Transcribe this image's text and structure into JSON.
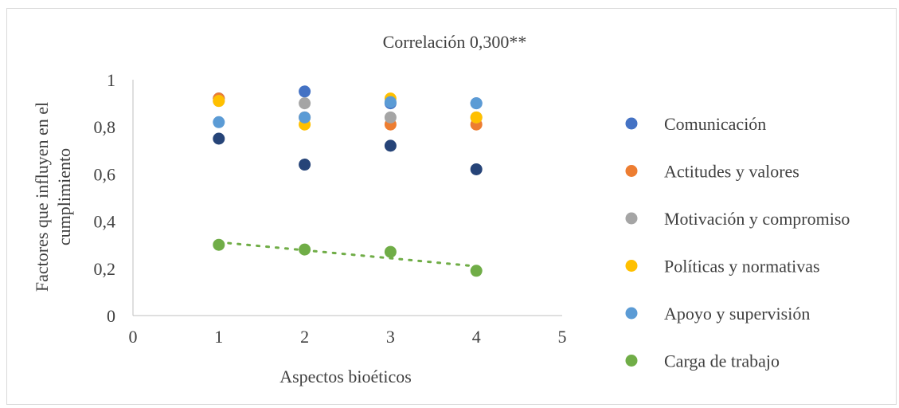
{
  "chart_data": {
    "type": "scatter",
    "title": "Correlación 0,300**",
    "xlabel": "Aspectos bioéticos",
    "ylabel_lines": [
      "Factores que influyen en el",
      "cumplimiento"
    ],
    "xlim": [
      0,
      5
    ],
    "ylim": [
      0,
      1
    ],
    "x_ticks": [
      "0",
      "1",
      "2",
      "3",
      "4",
      "5"
    ],
    "y_ticks": [
      "0",
      "0,2",
      "0,4",
      "0,6",
      "0,8",
      "1"
    ],
    "grid": false,
    "legend_position": "right",
    "series": [
      {
        "name": "Comunicación",
        "color": "#4472C4",
        "x": [
          1,
          2,
          3,
          4
        ],
        "y": [
          0.92,
          0.95,
          0.9,
          0.9
        ]
      },
      {
        "name": "Actitudes y valores",
        "color": "#ED7D31",
        "x": [
          1,
          2,
          3,
          4
        ],
        "y": [
          0.92,
          0.84,
          0.81,
          0.81
        ]
      },
      {
        "name": "Motivación y compromiso",
        "color": "#A5A5A5",
        "x": [
          1,
          2,
          3,
          4
        ],
        "y": [
          0.91,
          0.9,
          0.84,
          0.84
        ]
      },
      {
        "name": "Políticas y normativas",
        "color": "#FFC000",
        "x": [
          1,
          2,
          3,
          4
        ],
        "y": [
          0.91,
          0.81,
          0.92,
          0.84
        ]
      },
      {
        "name": "Apoyo y supervisión",
        "color": "#5B9BD5",
        "x": [
          1,
          2,
          3,
          4
        ],
        "y": [
          0.82,
          0.84,
          0.905,
          0.9
        ]
      },
      {
        "name": "Carga de trabajo",
        "color": "#70AD47",
        "x": [
          1,
          2,
          3,
          4
        ],
        "y": [
          0.3,
          0.28,
          0.27,
          0.19
        ],
        "trendline": true
      },
      {
        "name": "",
        "color": "#264478",
        "x": [
          1,
          2,
          3,
          4
        ],
        "y": [
          0.75,
          0.64,
          0.72,
          0.62
        ],
        "in_legend": false
      }
    ]
  }
}
